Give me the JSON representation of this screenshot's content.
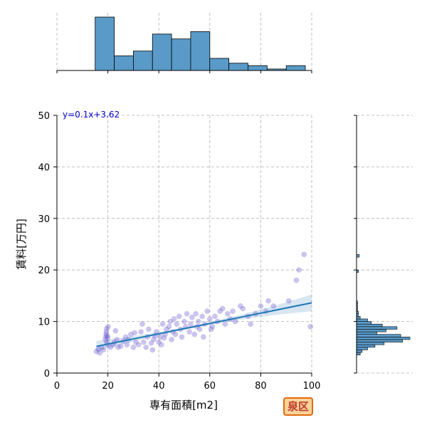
{
  "chart_data": {
    "type": "scatter",
    "xlabel": "専有面積[m2]",
    "ylabel": "賃料[万円]",
    "xlim": [
      0,
      100
    ],
    "ylim": [
      0,
      50
    ],
    "x_ticks": [
      0,
      20,
      40,
      60,
      80,
      100
    ],
    "y_ticks": [
      0,
      10,
      20,
      30,
      40,
      50
    ],
    "grid": true,
    "annotation": "y=0.1x+3.62",
    "badge": "泉区",
    "regression": {
      "slope": 0.1,
      "intercept": 3.62,
      "x_range": [
        15.5,
        100
      ]
    },
    "colors": {
      "points": "#6a5acd",
      "line": "#1f77b4",
      "bars": "#5a9ac8",
      "annotation": "#0000cc"
    },
    "points": [
      [
        15.5,
        4.2
      ],
      [
        16.2,
        4.6
      ],
      [
        16.8,
        3.9
      ],
      [
        17.5,
        5.0
      ],
      [
        18.2,
        4.5
      ],
      [
        19.0,
        6.5
      ],
      [
        19.2,
        7.0
      ],
      [
        19.3,
        7.5
      ],
      [
        19.4,
        8.0
      ],
      [
        19.5,
        8.6
      ],
      [
        19.6,
        6.0
      ],
      [
        19.7,
        5.5
      ],
      [
        19.8,
        7.2
      ],
      [
        20.0,
        6.8
      ],
      [
        20.1,
        9.0
      ],
      [
        21.0,
        5.0
      ],
      [
        22.0,
        5.5
      ],
      [
        22.5,
        6.0
      ],
      [
        23.0,
        8.2
      ],
      [
        23.5,
        6.5
      ],
      [
        24.0,
        5.0
      ],
      [
        25.0,
        5.2
      ],
      [
        26.0,
        6.2
      ],
      [
        27.0,
        7.0
      ],
      [
        27.5,
        5.5
      ],
      [
        28.0,
        6.5
      ],
      [
        29.0,
        7.5
      ],
      [
        30.0,
        5.0
      ],
      [
        30.5,
        7.8
      ],
      [
        31.0,
        6.0
      ],
      [
        32.0,
        5.5
      ],
      [
        33.0,
        8.0
      ],
      [
        33.5,
        9.5
      ],
      [
        34.0,
        6.0
      ],
      [
        35.0,
        5.0
      ],
      [
        35.5,
        7.0
      ],
      [
        36.0,
        8.5
      ],
      [
        37.0,
        5.8
      ],
      [
        38.0,
        6.5
      ],
      [
        38.5,
        7.2
      ],
      [
        39.0,
        8.0
      ],
      [
        40.0,
        6.0
      ],
      [
        40.5,
        7.0
      ],
      [
        41.0,
        5.5
      ],
      [
        41.5,
        9.5
      ],
      [
        42.0,
        6.8
      ],
      [
        42.5,
        7.5
      ],
      [
        43.0,
        8.5
      ],
      [
        44.0,
        9.0
      ],
      [
        44.5,
        10.0
      ],
      [
        45.0,
        6.5
      ],
      [
        45.5,
        8.0
      ],
      [
        46.0,
        10.5
      ],
      [
        46.5,
        7.5
      ],
      [
        47.0,
        9.5
      ],
      [
        48.0,
        11.0
      ],
      [
        48.5,
        8.5
      ],
      [
        49.0,
        7.0
      ],
      [
        50.0,
        10.0
      ],
      [
        50.5,
        9.0
      ],
      [
        51.0,
        11.5
      ],
      [
        52.0,
        8.0
      ],
      [
        52.5,
        9.5
      ],
      [
        53.0,
        10.8
      ],
      [
        54.0,
        7.5
      ],
      [
        54.5,
        11.5
      ],
      [
        55.0,
        9.0
      ],
      [
        55.5,
        10.0
      ],
      [
        56.0,
        8.5
      ],
      [
        57.0,
        11.0
      ],
      [
        58.0,
        9.5
      ],
      [
        59.0,
        12.0
      ],
      [
        60.0,
        10.5
      ],
      [
        60.5,
        8.5
      ],
      [
        61.0,
        9.0
      ],
      [
        62.0,
        11.0
      ],
      [
        63.0,
        10.0
      ],
      [
        64.0,
        12.0
      ],
      [
        65.0,
        12.5
      ],
      [
        66.0,
        9.5
      ],
      [
        67.0,
        11.5
      ],
      [
        68.0,
        10.5
      ],
      [
        69.0,
        12.0
      ],
      [
        70.0,
        10.0
      ],
      [
        72.0,
        13.0
      ],
      [
        73.0,
        12.5
      ],
      [
        75.0,
        11.0
      ],
      [
        76.0,
        9.5
      ],
      [
        78.0,
        11.5
      ],
      [
        80.0,
        13.0
      ],
      [
        82.0,
        12.0
      ],
      [
        83.0,
        14.0
      ],
      [
        85.0,
        13.0
      ],
      [
        91.0,
        14.0
      ],
      [
        94.0,
        18.0
      ],
      [
        95.0,
        20.0
      ],
      [
        97.0,
        23.0
      ],
      [
        99.5,
        9.0
      ],
      [
        37.5,
        4.5
      ],
      [
        57.5,
        7.0
      ]
    ],
    "top_hist": {
      "bin_edges": [
        0,
        7.5,
        15,
        22.5,
        30,
        37.5,
        45,
        52.5,
        60,
        67.5,
        75,
        82.5,
        90,
        97.5,
        105
      ],
      "counts": [
        0,
        0,
        22,
        6,
        8,
        15,
        13,
        16,
        5,
        3,
        2,
        0.6,
        2,
        0
      ]
    },
    "right_hist": {
      "bin_edges": [
        3.5,
        4,
        4.5,
        5,
        5.5,
        6,
        6.5,
        7,
        7.5,
        8,
        8.5,
        9,
        9.5,
        10,
        10.5,
        11,
        11.5,
        12,
        12.5,
        13,
        13.5,
        14,
        14.5,
        15,
        15.5,
        16,
        16.5,
        17,
        17.5,
        18,
        18.5,
        19,
        19.5,
        20,
        20.5,
        21,
        21.5,
        22,
        22.5,
        23
      ],
      "counts": [
        2,
        3,
        6,
        10,
        15,
        25,
        29,
        24,
        11,
        16,
        22,
        14,
        8,
        6,
        2,
        1,
        1,
        0.5,
        0.5,
        0.5,
        0.5,
        0,
        0,
        0,
        0,
        0,
        0,
        0,
        0,
        0,
        0,
        0,
        1,
        0,
        0,
        0,
        0,
        0,
        1.5
      ]
    }
  }
}
